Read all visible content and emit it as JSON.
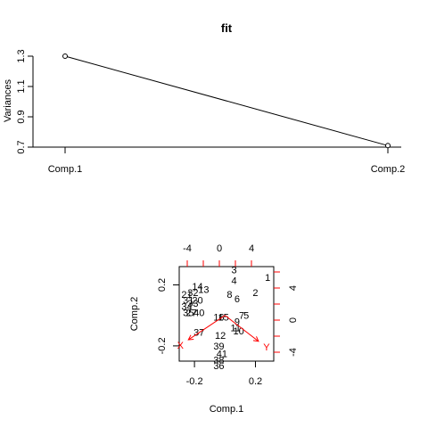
{
  "chart_data": [
    {
      "type": "line",
      "title": "fit",
      "ylabel": "Variances",
      "categories": [
        "Comp.1",
        "Comp.2"
      ],
      "values": [
        1.3,
        0.71
      ],
      "ylim": [
        0.7,
        1.3
      ],
      "yticks": [
        "0.7",
        "0.9",
        "1.1",
        "1.3"
      ]
    },
    {
      "type": "scatter",
      "subtype": "biplot",
      "xlabel": "Comp.1",
      "ylabel": "Comp.2",
      "xlim": [
        -0.3,
        0.32
      ],
      "ylim": [
        -0.3,
        0.32
      ],
      "xticks": [
        "-0.2",
        "0.2"
      ],
      "yticks": [
        "-0.2",
        "0.2"
      ],
      "top_ticks": [
        "-4",
        "0",
        "4"
      ],
      "right_ticks": [
        "-4",
        "0",
        "4"
      ],
      "points": [
        {
          "label": "1",
          "x": 0.28,
          "y": 0.25
        },
        {
          "label": "2",
          "x": 0.2,
          "y": 0.15
        },
        {
          "label": "3",
          "x": 0.06,
          "y": 0.3
        },
        {
          "label": "4",
          "x": 0.06,
          "y": 0.23
        },
        {
          "label": "5",
          "x": 0.14,
          "y": 0.0
        },
        {
          "label": "6",
          "x": 0.08,
          "y": 0.11
        },
        {
          "label": "7",
          "x": 0.11,
          "y": 0.0
        },
        {
          "label": "8",
          "x": 0.03,
          "y": 0.14
        },
        {
          "label": "9",
          "x": 0.08,
          "y": -0.04
        },
        {
          "label": "10",
          "x": 0.09,
          "y": -0.1
        },
        {
          "label": "11",
          "x": 0.07,
          "y": -0.08
        },
        {
          "label": "12",
          "x": -0.03,
          "y": -0.13
        },
        {
          "label": "13",
          "x": -0.14,
          "y": 0.17
        },
        {
          "label": "14",
          "x": -0.18,
          "y": 0.19
        },
        {
          "label": "15",
          "x": -0.01,
          "y": -0.01
        },
        {
          "label": "16",
          "x": -0.04,
          "y": -0.01
        },
        {
          "label": "20",
          "x": -0.18,
          "y": 0.1
        },
        {
          "label": "21",
          "x": -0.25,
          "y": 0.14
        },
        {
          "label": "27",
          "x": -0.22,
          "y": 0.02
        },
        {
          "label": "31",
          "x": -0.24,
          "y": 0.1
        },
        {
          "label": "32",
          "x": -0.21,
          "y": 0.15
        },
        {
          "label": "33",
          "x": -0.21,
          "y": 0.08
        },
        {
          "label": "34",
          "x": -0.25,
          "y": 0.06
        },
        {
          "label": "35",
          "x": -0.24,
          "y": 0.02
        },
        {
          "label": "36",
          "x": -0.04,
          "y": -0.33
        },
        {
          "label": "37",
          "x": -0.17,
          "y": -0.11
        },
        {
          "label": "38",
          "x": -0.04,
          "y": -0.29
        },
        {
          "label": "39",
          "x": -0.04,
          "y": -0.2
        },
        {
          "label": "40",
          "x": -0.17,
          "y": 0.02
        },
        {
          "label": "41",
          "x": -0.02,
          "y": -0.25
        }
      ],
      "loadings": [
        {
          "label": "X",
          "x": -0.24,
          "y": -0.16
        },
        {
          "label": "Y",
          "x": 0.22,
          "y": -0.17
        }
      ],
      "loading_color": "#ff0000"
    }
  ]
}
